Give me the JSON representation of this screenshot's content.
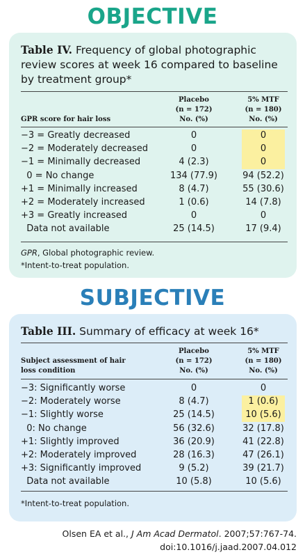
{
  "objective": {
    "heading": "OBJECTIVE",
    "table_label": "Table IV.",
    "table_title": "Frequency of global photographic review scores at week 16 compared to baseline by treatment group*",
    "col_head_row": "GPR score for hair loss",
    "placebo_head": [
      "Placebo",
      "(n = 172)",
      "No. (%)"
    ],
    "mtf_head": [
      "5% MTF",
      "(n = 180)",
      "No. (%)"
    ],
    "rows": [
      {
        "label": "−3 = Greatly decreased",
        "placebo": "0",
        "mtf": "0",
        "highlight": true
      },
      {
        "label": "−2 = Moderately decreased",
        "placebo": "0",
        "mtf": "0",
        "highlight": true
      },
      {
        "label": "−1 = Minimally decreased",
        "placebo": "4 (2.3)",
        "mtf": "0",
        "highlight": true
      },
      {
        "label": "  0 = No change",
        "placebo": "134 (77.9)",
        "mtf": "94 (52.2)",
        "highlight": false
      },
      {
        "label": "+1 = Minimally increased",
        "placebo": "8 (4.7)",
        "mtf": "55 (30.6)",
        "highlight": false
      },
      {
        "label": "+2 = Moderately increased",
        "placebo": "1 (0.6)",
        "mtf": "14 (7.8)",
        "highlight": false
      },
      {
        "label": "+3 = Greatly increased",
        "placebo": "0",
        "mtf": "0",
        "highlight": false
      },
      {
        "label": "  Data not available",
        "placebo": "25 (14.5)",
        "mtf": "17 (9.4)",
        "highlight": false
      }
    ],
    "footnote_abbrev": "GPR",
    "footnote_text": ", Global photographic review.",
    "footnote_itt": "*Intent-to-treat population."
  },
  "subjective": {
    "heading": "SUBJECTIVE",
    "table_label": "Table III.",
    "table_title": "Summary of efficacy at week 16*",
    "col_head_row": [
      "Subject assessment of hair",
      "loss condition"
    ],
    "placebo_head": [
      "Placebo",
      "(n = 172)",
      "No. (%)"
    ],
    "mtf_head": [
      "5% MTF",
      "(n = 180)",
      "No. (%)"
    ],
    "rows": [
      {
        "label": "−3: Significantly worse",
        "placebo": "0",
        "mtf": "0",
        "highlight": false
      },
      {
        "label": "−2: Moderately worse",
        "placebo": "8 (4.7)",
        "mtf": "1 (0.6)",
        "highlight": true
      },
      {
        "label": "−1: Slightly worse",
        "placebo": "25 (14.5)",
        "mtf": "10 (5.6)",
        "highlight": true
      },
      {
        "label": "  0: No change",
        "placebo": "56 (32.6)",
        "mtf": "32 (17.8)",
        "highlight": false
      },
      {
        "label": "+1: Slightly improved",
        "placebo": "36 (20.9)",
        "mtf": "41 (22.8)",
        "highlight": false
      },
      {
        "label": "+2: Moderately improved",
        "placebo": "28 (16.3)",
        "mtf": "47 (26.1)",
        "highlight": false
      },
      {
        "label": "+3: Significantly improved",
        "placebo": "9 (5.2)",
        "mtf": "39 (21.7)",
        "highlight": false
      },
      {
        "label": "  Data not available",
        "placebo": "10 (5.8)",
        "mtf": "10 (5.6)",
        "highlight": false
      }
    ],
    "footnote_itt": "*Intent-to-treat population."
  },
  "citation": {
    "authors": "Olsen EA et al., ",
    "journal": "J Am Acad Dermatol",
    "details": ". 2007;57:767-74.",
    "doi": "doi:10.1016/j.jaad.2007.04.012"
  },
  "colors": {
    "objective_heading": "#1aa58a",
    "subjective_heading": "#2a7fb8",
    "objective_card": "#dff3ee",
    "subjective_card": "#dcedf8",
    "highlight": "#fbf0a0"
  }
}
